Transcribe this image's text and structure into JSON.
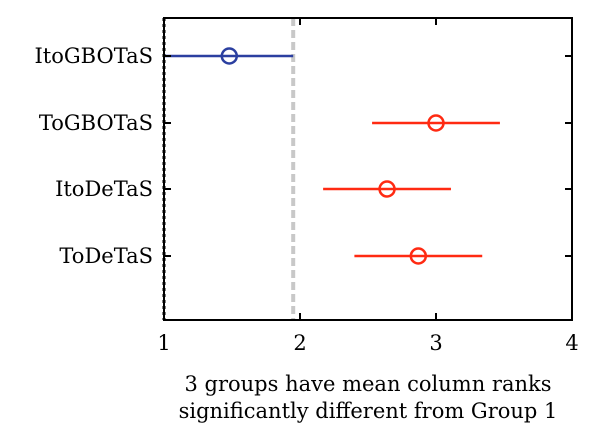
{
  "chart_data": {
    "type": "scatter",
    "subtype": "multiple-comparison-interval-plot",
    "categories": [
      "ItoGBOTaS",
      "ToGBOTaS",
      "ItoDeTaS",
      "ToDeTaS"
    ],
    "series": [
      {
        "values": [
          1.48,
          3.0,
          2.64,
          2.87
        ],
        "lower": [
          1.0,
          2.53,
          2.17,
          2.4
        ],
        "upper": [
          1.95,
          3.47,
          3.11,
          3.34
        ]
      }
    ],
    "highlight_category": "ItoGBOTaS",
    "highlight_color": "#2b3fa0",
    "other_color": "#ff2a12",
    "reference_lines": [
      {
        "value": 1.0,
        "style": "dotted",
        "color": "#000000"
      },
      {
        "value": 1.95,
        "style": "dashed",
        "color": "#c8c8c8"
      }
    ],
    "xlim": [
      1,
      4
    ],
    "xticks": [
      "1",
      "2",
      "3",
      "4"
    ],
    "xlabel_line1": "3 groups have mean column ranks",
    "xlabel_line2": "significantly different from Group 1",
    "grid": false
  }
}
